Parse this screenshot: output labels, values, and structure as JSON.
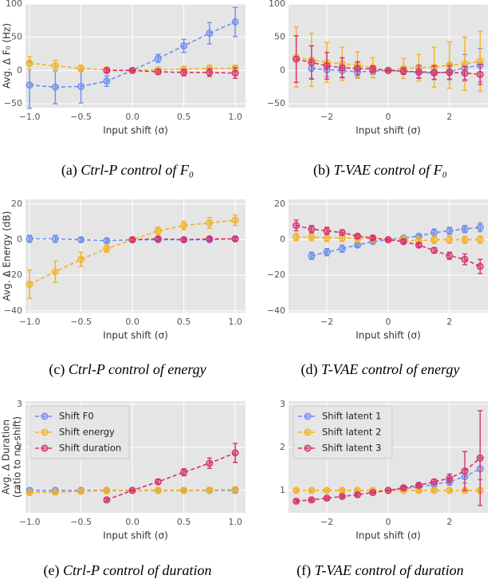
{
  "chart_data": [
    {
      "type": "line",
      "ylabel": "Avg. Δ F₀ (Hz)",
      "xlabel": "Input shift (σ)",
      "caption_label": "(a)",
      "caption": "Ctrl-P control of F₀",
      "x": [
        -1,
        -0.75,
        -0.5,
        -0.25,
        0,
        0.25,
        0.5,
        0.75,
        1
      ],
      "xlim": [
        -1.04,
        1.1
      ],
      "xticks": [
        {
          "value": -1,
          "label": "−1.0"
        },
        {
          "value": -0.5,
          "label": "−0.5"
        },
        {
          "value": 0,
          "label": "0.0"
        },
        0.5,
        {
          "value": 1,
          "label": "1.0"
        }
      ],
      "ylim": [
        -56,
        100
      ],
      "yticks": [
        {
          "value": -50,
          "label": "−50"
        },
        0,
        50,
        100
      ],
      "grid": true,
      "series": [
        {
          "color": "#6d8fef",
          "values": [
            -22,
            -25,
            -24,
            -16,
            0,
            18,
            37,
            56,
            73
          ],
          "errors": [
            35,
            25,
            25,
            8,
            2,
            6,
            10,
            16,
            22
          ]
        },
        {
          "color": "#f5b21f",
          "values": [
            11,
            7,
            3,
            1,
            0,
            1,
            2,
            3,
            3
          ],
          "errors": [
            10,
            8,
            5,
            4,
            1,
            4,
            4,
            5,
            5
          ]
        },
        {
          "color": "#d6336c",
          "values": [
            null,
            null,
            null,
            0,
            0,
            -2,
            -3,
            -3,
            -4
          ],
          "errors": [
            null,
            null,
            null,
            3,
            1,
            4,
            5,
            6,
            8
          ]
        }
      ]
    },
    {
      "type": "line",
      "xlabel": "Input shift (σ)",
      "caption_label": "(b)",
      "caption": "T-VAE control of F₀",
      "x": [
        -3,
        -2.5,
        -2,
        -1.5,
        -1,
        -0.5,
        0,
        0.5,
        1,
        1.5,
        2,
        2.5,
        3
      ],
      "xlim": [
        -3.25,
        3.25
      ],
      "xticks": [
        {
          "value": -2,
          "label": "−2"
        },
        0,
        2
      ],
      "ylim": [
        -56,
        100
      ],
      "yticks": [
        {
          "value": -50,
          "label": "−50"
        },
        0,
        50,
        100
      ],
      "grid": true,
      "series": [
        {
          "color": "#6d8fef",
          "values": [
            null,
            3,
            1,
            0,
            -2,
            -1,
            0,
            -1,
            -3,
            -4,
            -2,
            4,
            8
          ],
          "errors": [
            null,
            15,
            10,
            10,
            8,
            5,
            1,
            5,
            8,
            10,
            12,
            20,
            25
          ]
        },
        {
          "color": "#f5b21f",
          "values": [
            20,
            16,
            12,
            10,
            8,
            4,
            0,
            3,
            4,
            5,
            8,
            10,
            14
          ],
          "errors": [
            45,
            40,
            30,
            25,
            20,
            15,
            2,
            15,
            20,
            30,
            35,
            40,
            45
          ]
        },
        {
          "color": "#d6336c",
          "values": [
            17,
            12,
            7,
            4,
            3,
            2,
            0,
            -1,
            -2,
            -3,
            -3,
            -4,
            -6
          ],
          "errors": [
            35,
            25,
            20,
            15,
            10,
            5,
            1,
            5,
            10,
            10,
            10,
            10,
            15
          ]
        }
      ]
    },
    {
      "type": "line",
      "ylabel": "Avg. Δ Energy (dB)",
      "xlabel": "Input shift (σ)",
      "caption_label": "(c)",
      "caption": "Ctrl-P control of energy",
      "x": [
        -1,
        -0.75,
        -0.5,
        -0.25,
        0,
        0.25,
        0.5,
        0.75,
        1
      ],
      "xlim": [
        -1.04,
        1.1
      ],
      "xticks": [
        {
          "value": -1,
          "label": "−1.0"
        },
        {
          "value": -0.5,
          "label": "−0.5"
        },
        {
          "value": 0,
          "label": "0.0"
        },
        0.5,
        {
          "value": 1,
          "label": "1.0"
        }
      ],
      "ylim": [
        -41,
        22.7
      ],
      "yticks": [
        {
          "value": -40,
          "label": "−40"
        },
        {
          "value": -20,
          "label": "−20"
        },
        0,
        20
      ],
      "grid": true,
      "series": [
        {
          "color": "#6d8fef",
          "values": [
            0.5,
            0.5,
            0,
            -0.5,
            0,
            0,
            0,
            0,
            0.5
          ],
          "errors": [
            2,
            2,
            1,
            1,
            0.5,
            1,
            1,
            1,
            1
          ]
        },
        {
          "color": "#f5b21f",
          "values": [
            -25,
            -18,
            -11,
            -5,
            0,
            5,
            8,
            9.5,
            11
          ],
          "errors": [
            8,
            6,
            4,
            2,
            0.5,
            2,
            2.5,
            3,
            3
          ]
        },
        {
          "color": "#d6336c",
          "values": [
            null,
            null,
            null,
            null,
            0,
            0.5,
            0,
            0.5,
            0.5
          ],
          "errors": [
            null,
            null,
            null,
            null,
            1,
            1,
            1,
            1,
            1
          ]
        }
      ]
    },
    {
      "type": "line",
      "xlabel": "Input shift (σ)",
      "caption_label": "(d)",
      "caption": "T-VAE control of energy",
      "x": [
        -3,
        -2.5,
        -2,
        -1.5,
        -1,
        -0.5,
        0,
        0.5,
        1,
        1.5,
        2,
        2.5,
        3
      ],
      "xlim": [
        -3.25,
        3.25
      ],
      "xticks": [
        {
          "value": -2,
          "label": "−2"
        },
        0,
        2
      ],
      "ylim": [
        -41,
        22.7
      ],
      "yticks": [
        {
          "value": -40,
          "label": "−40"
        },
        {
          "value": -20,
          "label": "−20"
        },
        0,
        20
      ],
      "grid": true,
      "series": [
        {
          "color": "#6d8fef",
          "values": [
            null,
            -9,
            -7,
            -5,
            -3,
            -1,
            0,
            1,
            2,
            4,
            5,
            6,
            7
          ],
          "errors": [
            null,
            2,
            2,
            2,
            1,
            1,
            0.5,
            1,
            1,
            2,
            2,
            2,
            2.5
          ]
        },
        {
          "color": "#f5b21f",
          "values": [
            1.5,
            1.5,
            1,
            1,
            0.5,
            0.5,
            0,
            0,
            -0.5,
            0,
            0,
            0,
            0
          ],
          "errors": [
            2,
            2,
            2,
            2,
            2,
            2,
            1,
            2,
            2,
            2,
            2,
            2,
            2
          ]
        },
        {
          "color": "#d6336c",
          "values": [
            8,
            6,
            5,
            4,
            2,
            1,
            0,
            -1,
            -3,
            -6,
            -9,
            -11,
            -15
          ],
          "errors": [
            3,
            2,
            2,
            1.5,
            1,
            1,
            0.5,
            1,
            1,
            1.5,
            2,
            3,
            4
          ]
        }
      ]
    },
    {
      "type": "line",
      "ylabel": [
        "Avg. Δ Duration",
        "(ratio to no-shift)"
      ],
      "xlabel": "Input shift (σ)",
      "caption_label": "(e)",
      "caption": "Ctrl-P control of duration",
      "x": [
        -1,
        -0.75,
        -0.5,
        -0.25,
        0,
        0.25,
        0.5,
        0.75,
        1
      ],
      "xlim": [
        -1.04,
        1.1
      ],
      "xticks": [
        {
          "value": -1,
          "label": "−1.0"
        },
        {
          "value": -0.5,
          "label": "−0.5"
        },
        {
          "value": 0,
          "label": "0.0"
        },
        0.5,
        {
          "value": 1,
          "label": "1.0"
        }
      ],
      "ylim": [
        0.48,
        3.07
      ],
      "yticks": [
        1,
        2,
        3
      ],
      "grid": true,
      "legend": "upper left",
      "series": [
        {
          "name": "Shift F0",
          "color": "#6d8fef",
          "values": [
            1,
            1,
            1,
            1,
            1,
            1,
            1,
            1,
            1
          ],
          "errors": [
            0.03,
            0.03,
            0.03,
            0.03,
            0.01,
            0.03,
            0.03,
            0.03,
            0.03
          ]
        },
        {
          "name": "Shift energy",
          "color": "#f5b21f",
          "values": [
            0.95,
            0.96,
            0.98,
            0.99,
            1,
            1,
            1,
            1.01,
            1.02
          ],
          "errors": [
            0.06,
            0.06,
            0.05,
            0.04,
            0.01,
            0.04,
            0.05,
            0.05,
            0.06
          ]
        },
        {
          "name": "Shift duration",
          "color": "#d6336c",
          "values": [
            null,
            null,
            null,
            0.78,
            1,
            1.2,
            1.42,
            1.63,
            1.87
          ],
          "errors": [
            null,
            null,
            null,
            0.03,
            0.01,
            0.05,
            0.08,
            0.12,
            0.22
          ]
        }
      ]
    },
    {
      "type": "line",
      "xlabel": "Input shift (σ)",
      "caption_label": "(f)",
      "caption": "T-VAE control of duration",
      "x": [
        -3,
        -2.5,
        -2,
        -1.5,
        -1,
        -0.5,
        0,
        0.5,
        1,
        1.5,
        2,
        2.5,
        3
      ],
      "xlim": [
        -3.25,
        3.25
      ],
      "xticks": [
        {
          "value": -2,
          "label": "−2"
        },
        0,
        2
      ],
      "ylim": [
        0.48,
        3.07
      ],
      "yticks": [
        1,
        2,
        3
      ],
      "grid": true,
      "legend": "upper left",
      "series": [
        {
          "name": "Shift latent 1",
          "color": "#6d8fef",
          "values": [
            null,
            null,
            null,
            null,
            null,
            null,
            1,
            1.04,
            1.08,
            1.14,
            1.2,
            1.32,
            1.5
          ],
          "errors": [
            null,
            null,
            null,
            null,
            null,
            null,
            0.01,
            0.03,
            0.04,
            0.05,
            0.08,
            0.15,
            0.25
          ]
        },
        {
          "name": "Shift latent 2",
          "color": "#f5b21f",
          "values": [
            1,
            1,
            1,
            1,
            1,
            1,
            1,
            1,
            1,
            1,
            1,
            1,
            1
          ],
          "errors": [
            0.03,
            0.03,
            0.03,
            0.03,
            0.03,
            0.03,
            0.01,
            0.03,
            0.03,
            0.03,
            0.03,
            0.03,
            0.03
          ]
        },
        {
          "name": "Shift latent 3",
          "color": "#d6336c",
          "values": [
            0.75,
            0.78,
            0.82,
            0.86,
            0.9,
            0.95,
            1,
            1.06,
            1.12,
            1.2,
            1.28,
            1.45,
            1.75
          ],
          "errors": [
            0.03,
            0.03,
            0.03,
            0.03,
            0.03,
            0.02,
            0.01,
            0.03,
            0.04,
            0.06,
            0.1,
            0.45,
            1.1
          ]
        }
      ]
    }
  ]
}
